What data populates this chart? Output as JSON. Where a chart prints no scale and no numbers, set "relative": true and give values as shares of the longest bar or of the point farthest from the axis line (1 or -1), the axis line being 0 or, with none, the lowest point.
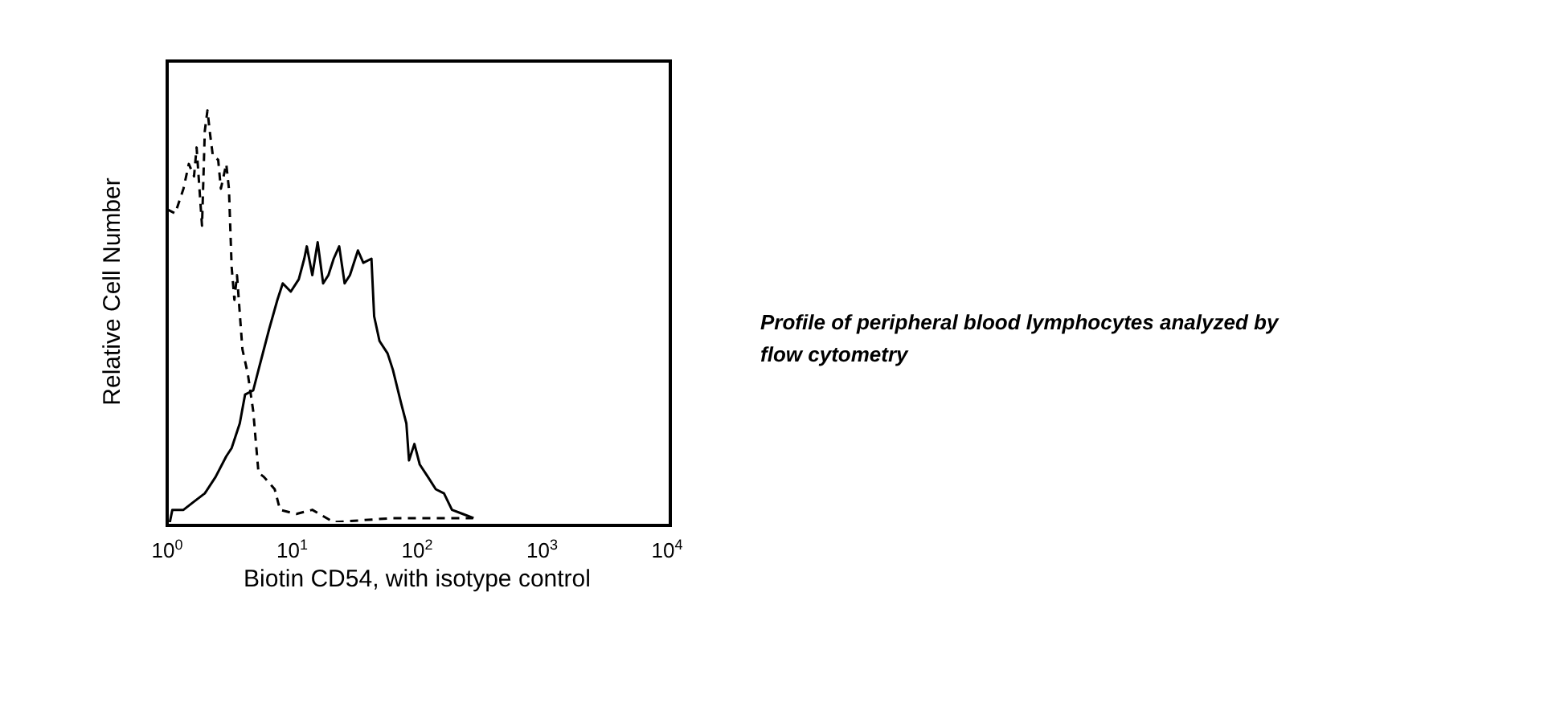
{
  "chart_data": {
    "type": "line",
    "relative": true,
    "log": "x",
    "xlabel": "Biotin CD54, with isotype control",
    "ylabel": "Relative Cell Number",
    "xlim": [
      1,
      10000
    ],
    "xticks": [
      {
        "value": 1,
        "label": "10$^{0}$"
      },
      {
        "value": 10,
        "label": "10$^{1}$"
      },
      {
        "value": 100,
        "label": "10$^{2}$"
      },
      {
        "value": 1000,
        "label": "10$^{3}$"
      },
      {
        "value": 10000,
        "label": "10$^{4}$"
      }
    ],
    "tick_labels": "x",
    "marker": "none",
    "series": [
      {
        "color": "#000000",
        "line_style": "dashed",
        "x": [
          1,
          1.16,
          1.35,
          1.49,
          1.64,
          1.72,
          1.9,
          2,
          2.1,
          2.21,
          2.32,
          2.56,
          2.69,
          2.97,
          3.12,
          3.28,
          3.45,
          3.62,
          4,
          4.42,
          4.88,
          5.38,
          5.94,
          7.25,
          8,
          10.8,
          14.5,
          21.5,
          64,
          280
        ],
        "values": [
          0.76,
          0.75,
          0.81,
          0.87,
          0.84,
          0.91,
          0.72,
          0.95,
          1,
          0.94,
          0.89,
          0.88,
          0.81,
          0.87,
          0.81,
          0.62,
          0.54,
          0.6,
          0.42,
          0.36,
          0.27,
          0.12,
          0.11,
          0.08,
          0.03,
          0.02,
          0.03,
          0,
          0.01,
          0.01
        ]
      },
      {
        "color": "#000000",
        "line_style": "solid",
        "x": [
          1.05,
          1.1,
          1.35,
          1.64,
          2,
          2.44,
          2.97,
          3.28,
          3.81,
          4.2,
          4.88,
          5.38,
          5.94,
          6.56,
          7.62,
          8.41,
          9.75,
          11.3,
          12.5,
          13.1,
          14.5,
          16,
          17.7,
          19.5,
          21.5,
          23.8,
          26.3,
          29,
          33.6,
          37.1,
          43.1,
          45.3,
          50,
          58,
          64,
          74.3,
          82,
          86.1,
          95.1,
          105,
          122,
          141,
          164,
          190,
          232,
          283
        ],
        "values": [
          0,
          0.03,
          0.03,
          0.05,
          0.07,
          0.11,
          0.16,
          0.18,
          0.24,
          0.31,
          0.32,
          0.37,
          0.42,
          0.47,
          0.54,
          0.58,
          0.56,
          0.59,
          0.64,
          0.67,
          0.6,
          0.68,
          0.58,
          0.6,
          0.64,
          0.67,
          0.58,
          0.6,
          0.66,
          0.63,
          0.64,
          0.5,
          0.44,
          0.41,
          0.37,
          0.29,
          0.24,
          0.15,
          0.19,
          0.14,
          0.11,
          0.08,
          0.07,
          0.03,
          0.02,
          0.01
        ]
      }
    ],
    "annotations": [
      "Profile of peripheral blood lymphocytes analyzed by flow cytometry"
    ]
  }
}
